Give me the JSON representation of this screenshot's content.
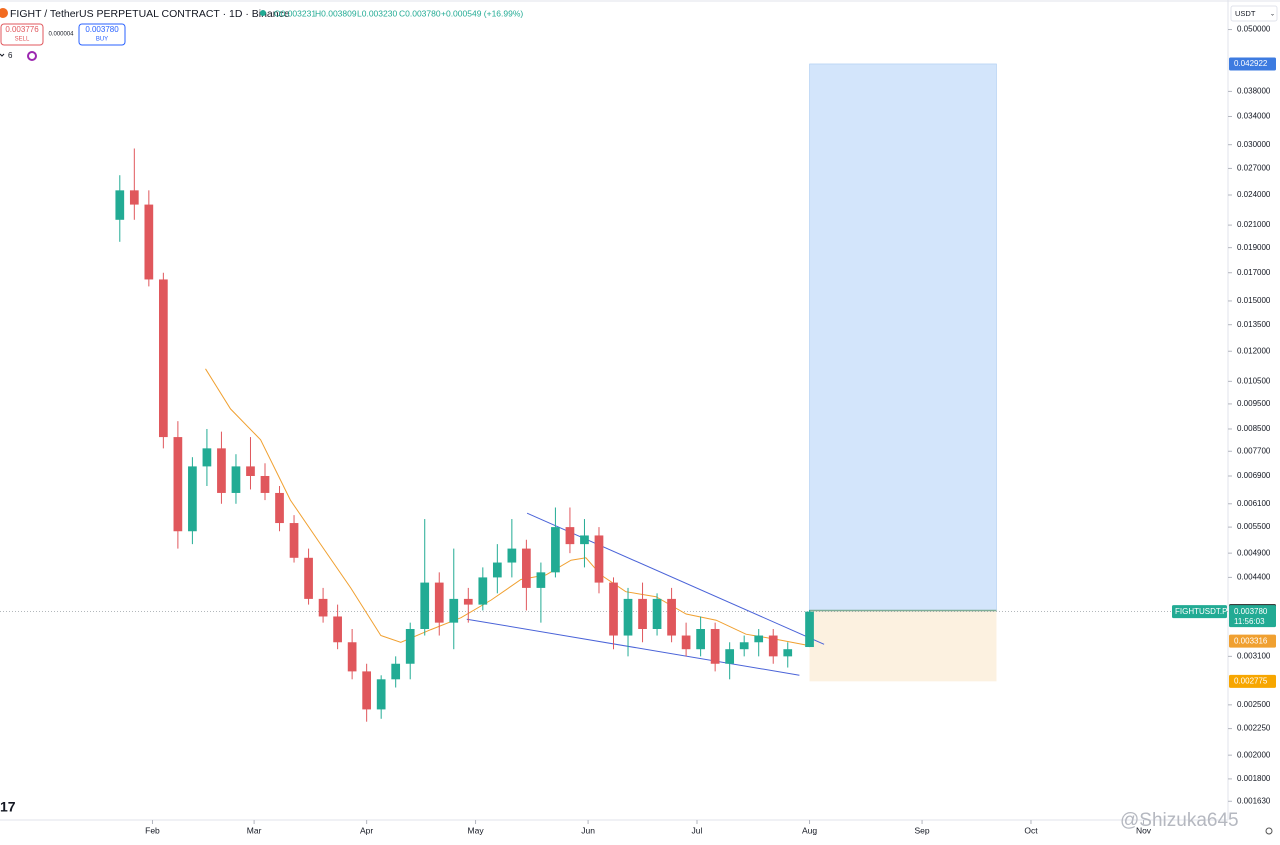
{
  "chart_data": {
    "type": "candlestick",
    "title": "FIGHT / TetherUS PERPETUAL CONTRACT · 1D · Binance",
    "ohlc_legend": [
      "O0.003231",
      "H0.003809",
      "L0.003230",
      "C0.003780",
      "+0.000549 (+16.99%)"
    ],
    "sell": {
      "price": "0.003776",
      "label": "SELL"
    },
    "spread": "0.000004",
    "buy": {
      "price": "0.003780",
      "label": "BUY"
    },
    "indicator_count": "6",
    "currency": "USDT",
    "symbol_tag": "FIGHTUSDT.P",
    "countdown": "11:56:03",
    "watermark": "@Shizuka645",
    "logo": "17",
    "log_scale": true,
    "grid": false,
    "up_color": "#22ab94",
    "down_color": "#e0575c",
    "xlim": [
      -11,
      327
    ],
    "ylim": [
      0.0015,
      0.057
    ],
    "xticks": [
      {
        "value": 31,
        "label": "Feb"
      },
      {
        "value": 59,
        "label": "Mar"
      },
      {
        "value": 90,
        "label": "Apr"
      },
      {
        "value": 120,
        "label": "May"
      },
      {
        "value": 151,
        "label": "Jun"
      },
      {
        "value": 181,
        "label": "Jul"
      },
      {
        "value": 212,
        "label": "Aug"
      },
      {
        "value": 243,
        "label": "Sep"
      },
      {
        "value": 273,
        "label": "Oct"
      },
      {
        "value": 304,
        "label": "Nov"
      }
    ],
    "yticks": [
      {
        "value": 0.05,
        "label": "0.050000"
      },
      {
        "value": 0.038,
        "label": "0.038000"
      },
      {
        "value": 0.034,
        "label": "0.034000"
      },
      {
        "value": 0.03,
        "label": "0.030000"
      },
      {
        "value": 0.027,
        "label": "0.027000"
      },
      {
        "value": 0.024,
        "label": "0.024000"
      },
      {
        "value": 0.021,
        "label": "0.021000"
      },
      {
        "value": 0.019,
        "label": "0.019000"
      },
      {
        "value": 0.017,
        "label": "0.017000"
      },
      {
        "value": 0.015,
        "label": "0.015000"
      },
      {
        "value": 0.0135,
        "label": "0.013500"
      },
      {
        "value": 0.012,
        "label": "0.012000"
      },
      {
        "value": 0.0105,
        "label": "0.010500"
      },
      {
        "value": 0.0095,
        "label": "0.009500"
      },
      {
        "value": 0.0085,
        "label": "0.008500"
      },
      {
        "value": 0.0077,
        "label": "0.007700"
      },
      {
        "value": 0.0069,
        "label": "0.006900"
      },
      {
        "value": 0.0061,
        "label": "0.006100"
      },
      {
        "value": 0.0055,
        "label": "0.005500"
      },
      {
        "value": 0.0049,
        "label": "0.004900"
      },
      {
        "value": 0.0044,
        "label": "0.004400"
      },
      {
        "value": 0.0031,
        "label": "0.003100"
      },
      {
        "value": 0.0025,
        "label": "0.002500"
      },
      {
        "value": 0.00225,
        "label": "0.002250"
      },
      {
        "value": 0.002,
        "label": "0.002000"
      },
      {
        "value": 0.0018,
        "label": "0.001800"
      },
      {
        "value": 0.00163,
        "label": "0.001630"
      }
    ],
    "price_labels": [
      {
        "value": 0.042922,
        "label": "0.042922",
        "color": "#3d7be0"
      },
      {
        "value": 0.003799,
        "label": "0.003799",
        "color": "#3d3d3d"
      },
      {
        "value": 0.00378,
        "label": "0.003780",
        "color": "#22ab94"
      },
      {
        "value": 0.003316,
        "label": "0.003316",
        "color": "#f0a030"
      },
      {
        "value": 0.002775,
        "label": "0.002775",
        "color": "#f7a600"
      }
    ],
    "x": [
      22,
      26,
      30,
      34,
      38,
      42,
      46,
      50,
      54,
      58,
      62,
      66,
      70,
      74,
      78,
      82,
      86,
      90,
      94,
      98,
      102,
      106,
      110,
      114,
      118,
      122,
      126,
      130,
      134,
      138,
      142,
      146,
      150,
      154,
      158,
      162,
      166,
      170,
      174,
      178,
      182,
      186,
      190,
      194,
      198,
      202,
      206,
      212
    ],
    "open": [
      0.0215,
      0.0245,
      0.023,
      0.0165,
      0.0082,
      0.0054,
      0.0072,
      0.0078,
      0.0064,
      0.0072,
      0.0069,
      0.0064,
      0.0056,
      0.0048,
      0.004,
      0.0037,
      0.0033,
      0.0029,
      0.00245,
      0.0028,
      0.003,
      0.0035,
      0.0043,
      0.0036,
      0.004,
      0.0039,
      0.0044,
      0.0047,
      0.005,
      0.0042,
      0.0045,
      0.0055,
      0.0051,
      0.0053,
      0.0043,
      0.0034,
      0.004,
      0.0035,
      0.004,
      0.0034,
      0.0032,
      0.0035,
      0.003,
      0.0032,
      0.0033,
      0.0034,
      0.0031,
      0.003231
    ],
    "high": [
      0.0262,
      0.0295,
      0.0245,
      0.017,
      0.0088,
      0.0075,
      0.0085,
      0.0084,
      0.0076,
      0.0082,
      0.0073,
      0.0066,
      0.0058,
      0.005,
      0.0042,
      0.0039,
      0.0035,
      0.003,
      0.00285,
      0.0031,
      0.0036,
      0.0057,
      0.0045,
      0.005,
      0.0042,
      0.0046,
      0.0051,
      0.0057,
      0.0052,
      0.0047,
      0.006,
      0.006,
      0.0057,
      0.0055,
      0.0044,
      0.0042,
      0.0043,
      0.0041,
      0.0042,
      0.0036,
      0.0037,
      0.0036,
      0.0033,
      0.0034,
      0.0035,
      0.0035,
      0.0033,
      0.003809
    ],
    "low": [
      0.0195,
      0.0215,
      0.016,
      0.0078,
      0.005,
      0.0051,
      0.0066,
      0.0061,
      0.0061,
      0.0065,
      0.0062,
      0.0054,
      0.0047,
      0.0039,
      0.0036,
      0.0032,
      0.0028,
      0.00232,
      0.00235,
      0.0027,
      0.0028,
      0.0034,
      0.0034,
      0.0032,
      0.0036,
      0.0038,
      0.0041,
      0.0044,
      0.0038,
      0.0036,
      0.0044,
      0.0049,
      0.0046,
      0.0041,
      0.0032,
      0.0031,
      0.0033,
      0.0034,
      0.0033,
      0.0031,
      0.0031,
      0.0029,
      0.0028,
      0.0031,
      0.0031,
      0.003,
      0.00295,
      0.00323
    ],
    "close": [
      0.0245,
      0.023,
      0.0165,
      0.0082,
      0.0054,
      0.0072,
      0.0078,
      0.0064,
      0.0072,
      0.0069,
      0.0064,
      0.0056,
      0.0048,
      0.004,
      0.0037,
      0.0033,
      0.0029,
      0.00245,
      0.0028,
      0.003,
      0.0035,
      0.0043,
      0.0036,
      0.004,
      0.0039,
      0.0044,
      0.0047,
      0.005,
      0.0042,
      0.0045,
      0.0055,
      0.0051,
      0.0053,
      0.0043,
      0.0034,
      0.004,
      0.0035,
      0.004,
      0.0034,
      0.0032,
      0.0035,
      0.003,
      0.0032,
      0.0033,
      0.0034,
      0.0031,
      0.0032,
      0.00378
    ],
    "ema": {
      "color": "#f0a030",
      "x": [
        45.6,
        52.5,
        60.8,
        69,
        77.3,
        85.6,
        93.9,
        99.4,
        107.7,
        116,
        124.3,
        132.5,
        139.4,
        146.3,
        150.4,
        154.5,
        161.4,
        169.7,
        178,
        186.3,
        194.5,
        204.2,
        211
      ],
      "values": [
        0.0111,
        0.00929,
        0.0081,
        0.0062,
        0.0051,
        0.0042,
        0.0034,
        0.0033,
        0.00349,
        0.00368,
        0.00398,
        0.00436,
        0.00445,
        0.00475,
        0.0048,
        0.00445,
        0.00413,
        0.00404,
        0.00374,
        0.00364,
        0.00342,
        0.00333,
        0.00326
      ]
    },
    "trendlines": [
      {
        "color": "#4a63d8",
        "x": [
          134.2,
          216
        ],
        "values": [
          0.00585,
          0.00327
        ]
      },
      {
        "color": "#4a63d8",
        "x": [
          117.6,
          209.2
        ],
        "values": [
          0.003656,
          0.002851
        ]
      }
    ],
    "position": {
      "x": [
        212,
        263.5
      ],
      "entry": 0.003799,
      "target": 0.042922,
      "stop": 0.002775,
      "profit_color": "#d3e5fb",
      "loss_color": "#fcf1e0"
    },
    "current_price": 0.00378
  }
}
